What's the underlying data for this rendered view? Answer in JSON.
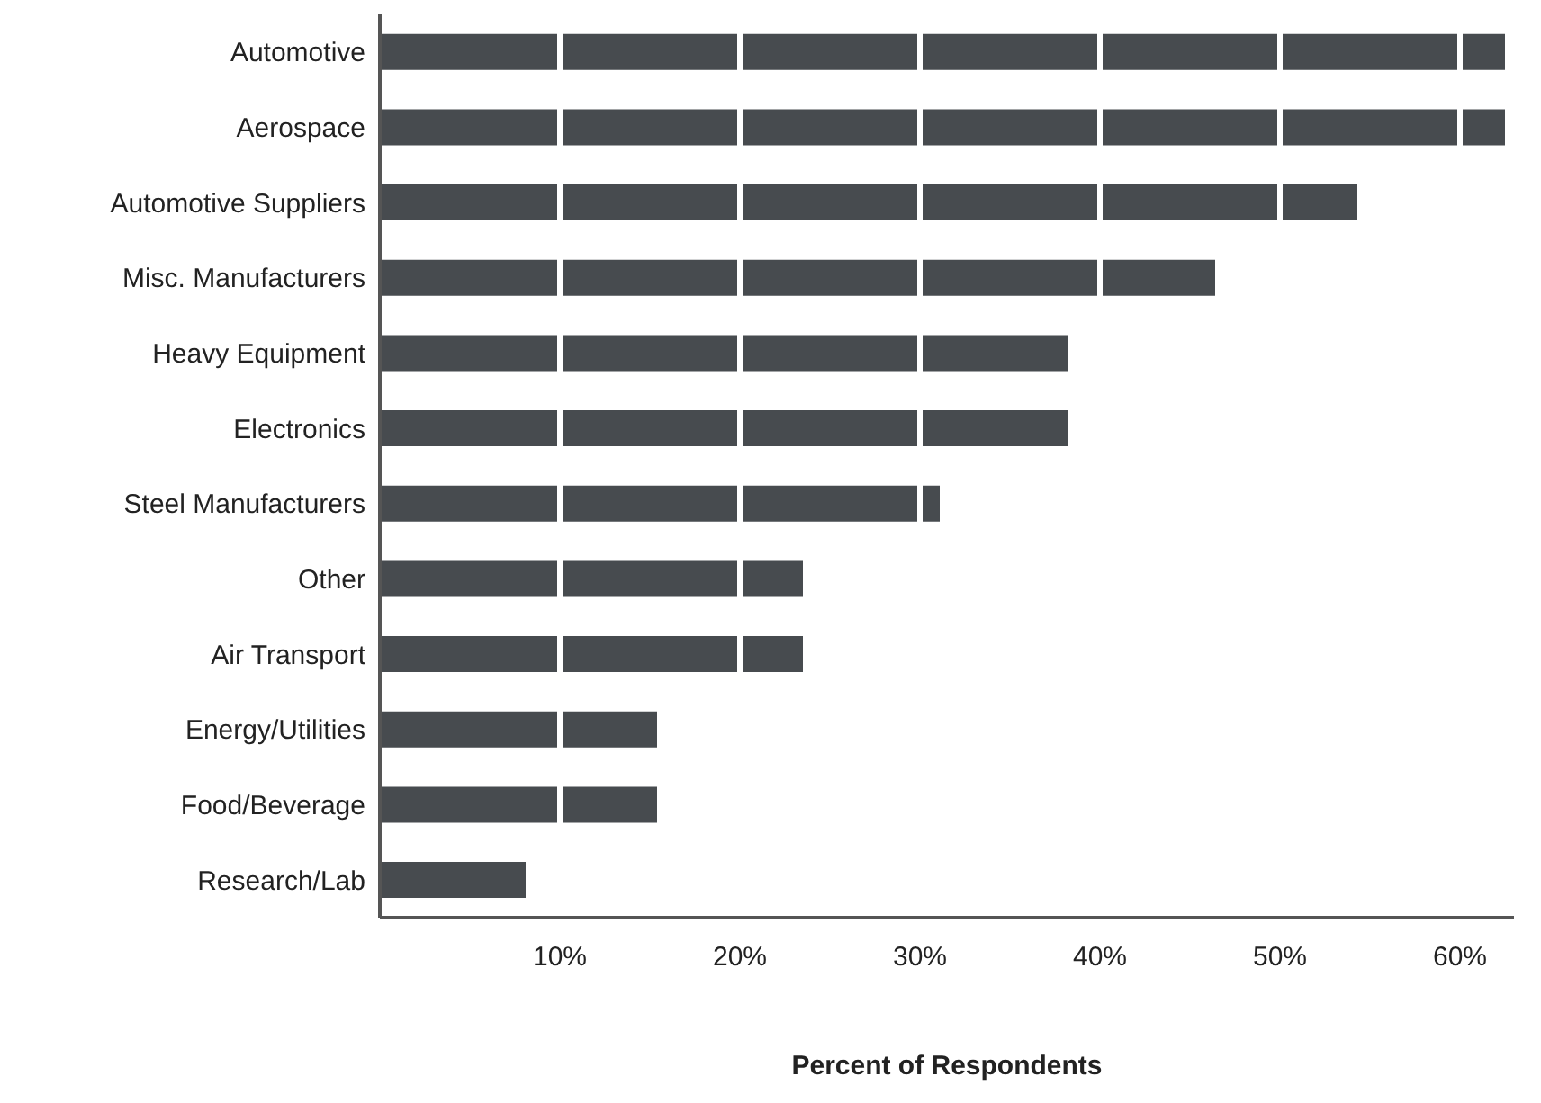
{
  "chart_data": {
    "type": "bar",
    "orientation": "horizontal",
    "xlabel": "Percent of Respondents",
    "categories": [
      "Automotive",
      "Aerospace",
      "Automotive Suppliers",
      "Misc. Manufacturers",
      "Heavy Equipment",
      "Electronics",
      "Steel Manufacturers",
      "Other",
      "Air Transport",
      "Energy/Utilities",
      "Food/Beverage",
      "Research/Lab"
    ],
    "values": [
      62.5,
      62.5,
      54.3,
      46.4,
      38.2,
      38.2,
      31.1,
      23.5,
      23.5,
      15.4,
      15.4,
      8.1
    ],
    "color": "#474b4f",
    "xlim": [
      0,
      63
    ],
    "xticks": [
      {
        "value": 10,
        "label": "10%"
      },
      {
        "value": 20,
        "label": "20%"
      },
      {
        "value": 30,
        "label": "30%"
      },
      {
        "value": 40,
        "label": "40%"
      },
      {
        "value": 50,
        "label": "50%"
      },
      {
        "value": 60,
        "label": "60%"
      }
    ],
    "grid": "x"
  }
}
